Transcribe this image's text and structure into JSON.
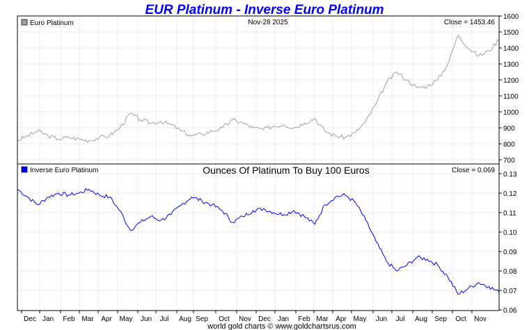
{
  "chart_data": [
    {
      "type": "line",
      "title": "EUR Platinum - Inverse Euro Platinum",
      "legend": "Euro Platinum",
      "date_label": "Nov-28  2025",
      "close_label": "Close = 1453.46",
      "color": "#a0a0a0",
      "ylim": [
        700,
        1600
      ],
      "yticks": [
        700,
        800,
        900,
        1000,
        1100,
        1200,
        1300,
        1400,
        1500,
        1600
      ],
      "values": [
        820,
        850,
        880,
        850,
        830,
        840,
        830,
        820,
        840,
        850,
        900,
        990,
        950,
        930,
        940,
        920,
        880,
        850,
        860,
        880,
        900,
        950,
        930,
        900,
        890,
        910,
        920,
        900,
        930,
        960,
        880,
        850,
        840,
        870,
        940,
        1050,
        1180,
        1250,
        1200,
        1150,
        1160,
        1200,
        1300,
        1480,
        1400,
        1350,
        1380,
        1453
      ]
    },
    {
      "type": "line",
      "legend": "Inverse Euro Platinum",
      "subtitle": "Ounces Of Platinum To Buy 100 Euros",
      "close_label": "Close = 0.069",
      "color": "#0000ff",
      "ylim": [
        0.06,
        0.13
      ],
      "yticks": [
        "0.06",
        "0.07",
        "0.08",
        "0.09",
        "0.10",
        "0.11",
        "0.12",
        "0.13"
      ],
      "values": [
        0.122,
        0.118,
        0.114,
        0.118,
        0.12,
        0.119,
        0.12,
        0.122,
        0.119,
        0.118,
        0.111,
        0.101,
        0.105,
        0.108,
        0.106,
        0.109,
        0.114,
        0.118,
        0.116,
        0.114,
        0.111,
        0.105,
        0.108,
        0.111,
        0.112,
        0.11,
        0.109,
        0.111,
        0.108,
        0.104,
        0.114,
        0.118,
        0.119,
        0.115,
        0.106,
        0.095,
        0.085,
        0.08,
        0.083,
        0.087,
        0.086,
        0.083,
        0.077,
        0.068,
        0.071,
        0.074,
        0.072,
        0.069
      ]
    }
  ],
  "x_ticks": [
    "Dec",
    "Jan",
    "Feb",
    "Mar",
    "Apr",
    "May",
    "Jun",
    "Jul",
    "Aug",
    "Sep",
    "Oct",
    "Nov",
    "Dec",
    "Jan",
    "Feb",
    "Mar",
    "Apr",
    "May",
    "Jun",
    "Jul",
    "Aug",
    "Sep",
    "Oct",
    "Nov"
  ],
  "footer": "world gold charts © www.goldchartsrus.com"
}
